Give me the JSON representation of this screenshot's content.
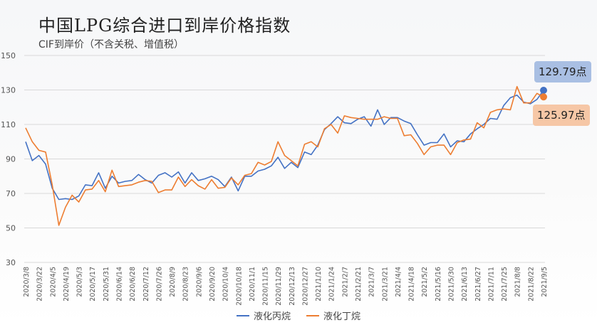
{
  "title": "中国LPG综合进口到岸价格指数",
  "subtitle": "CIF到岸价（不含关税、增值税）",
  "colors": {
    "propane": "#4472c4",
    "butane": "#ed7d31",
    "grid": "#d9d9d9"
  },
  "callouts": {
    "propane": "129.79点",
    "butane": "125.97点"
  },
  "chart_data": {
    "type": "line",
    "title": "中国LPG综合进口到岸价格指数",
    "ylim": [
      30,
      150
    ],
    "yticks": [
      30,
      50,
      70,
      90,
      110,
      130,
      150
    ],
    "grid": true,
    "legend_position": "bottom",
    "x": [
      "2020/3/8",
      "2020/3/15",
      "2020/3/22",
      "2020/3/29",
      "2020/4/5",
      "2020/4/12",
      "2020/4/19",
      "2020/4/26",
      "2020/5/3",
      "2020/5/10",
      "2020/5/17",
      "2020/5/24",
      "2020/5/31",
      "2020/6/7",
      "2020/6/14",
      "2020/6/21",
      "2020/6/28",
      "2020/7/5",
      "2020/7/12",
      "2020/7/19",
      "2020/7/26",
      "2020/8/2",
      "2020/8/9",
      "2020/8/16",
      "2020/8/23",
      "2020/8/30",
      "2020/9/6",
      "2020/9/13",
      "2020/9/20",
      "2020/9/27",
      "2020/10/4",
      "2020/10/11",
      "2020/10/18",
      "2020/10/25",
      "2020/11/1",
      "2020/11/8",
      "2020/11/15",
      "2020/11/22",
      "2020/11/29",
      "2020/12/6",
      "2020/12/13",
      "2020/12/20",
      "2020/12/27",
      "2021/1/3",
      "2021/1/10",
      "2021/1/17",
      "2021/1/24",
      "2021/1/31",
      "2021/2/7",
      "2021/2/14",
      "2021/2/21",
      "2021/2/28",
      "2021/3/7",
      "2021/3/14",
      "2021/3/21",
      "2021/3/28",
      "2021/4/4",
      "2021/4/11",
      "2021/4/18",
      "2021/4/25",
      "2021/5/2",
      "2021/5/9",
      "2021/5/16",
      "2021/5/23",
      "2021/5/30",
      "2021/6/6",
      "2021/6/13",
      "2021/6/20",
      "2021/6/27",
      "2021/7/4",
      "2021/7/11",
      "2021/7/18",
      "2021/7/25",
      "2021/8/1",
      "2021/8/8",
      "2021/8/15",
      "2021/8/22",
      "2021/8/29",
      "2021/9/5"
    ],
    "xtick_labels": [
      "2020/3/8",
      "2020/3/22",
      "2020/4/5",
      "2020/4/19",
      "2020/5/3",
      "2020/5/17",
      "2020/5/31",
      "2020/6/14",
      "2020/6/28",
      "2020/7/12",
      "2020/7/26",
      "2020/8/9",
      "2020/8/23",
      "2020/9/6",
      "2020/9/20",
      "2020/10/4",
      "2020/10/18",
      "2020/11/1",
      "2020/11/15",
      "2020/11/29",
      "2020/12/13",
      "2020/12/27",
      "2021/1/10",
      "2021/1/24",
      "2021/2/7",
      "2021/2/21",
      "2021/3/7",
      "2021/3/21",
      "2021/4/4",
      "2021/4/18",
      "2021/5/2",
      "2021/5/16",
      "2021/5/30",
      "2021/6/13",
      "2021/6/27",
      "2021/7/11",
      "2021/7/25",
      "2021/8/8",
      "2021/8/22",
      "2021/9/5"
    ],
    "series": [
      {
        "name": "液化丙烷",
        "key": "propane",
        "values": [
          100,
          89,
          92,
          87,
          73,
          66.5,
          67,
          66.5,
          68.5,
          75,
          74.5,
          82,
          73,
          80,
          76,
          77,
          77.5,
          81,
          78,
          76,
          80.5,
          82,
          79.5,
          82.5,
          76,
          82,
          77.5,
          78.5,
          80,
          78,
          74,
          79.5,
          71.5,
          80,
          80,
          83,
          84,
          86,
          91,
          84.5,
          88,
          85,
          94,
          92.5,
          98,
          107,
          110.5,
          114.5,
          111,
          110.5,
          113,
          114.5,
          109,
          118.5,
          110,
          114,
          114,
          112,
          110.5,
          104,
          98,
          99.5,
          99.5,
          104.5,
          97,
          100.5,
          100,
          104.5,
          107.5,
          110,
          113.5,
          113,
          121,
          125.5,
          127,
          123,
          122,
          124.5,
          129.79
        ]
      },
      {
        "name": "液化丁烷",
        "key": "butane",
        "values": [
          108,
          100,
          95,
          94,
          75,
          51.5,
          62,
          69,
          65,
          72,
          72.5,
          77.5,
          71,
          83.5,
          74,
          74.5,
          75,
          76.5,
          77.5,
          77,
          70.5,
          72,
          72,
          79.5,
          74,
          78,
          74.5,
          72.5,
          78,
          73,
          73.5,
          79,
          75,
          80.5,
          81.5,
          88,
          86.5,
          88.5,
          100,
          92,
          89,
          86,
          98.5,
          100,
          97,
          107.5,
          110,
          105,
          115,
          114,
          113.5,
          113,
          113,
          113,
          114.5,
          113.5,
          113.5,
          103.5,
          104,
          99,
          92.5,
          97,
          98,
          98,
          92.5,
          99.5,
          101,
          101.5,
          111,
          108,
          117,
          118.5,
          119,
          118.5,
          132,
          122.5,
          122.5,
          128,
          125.97
        ]
      }
    ]
  }
}
